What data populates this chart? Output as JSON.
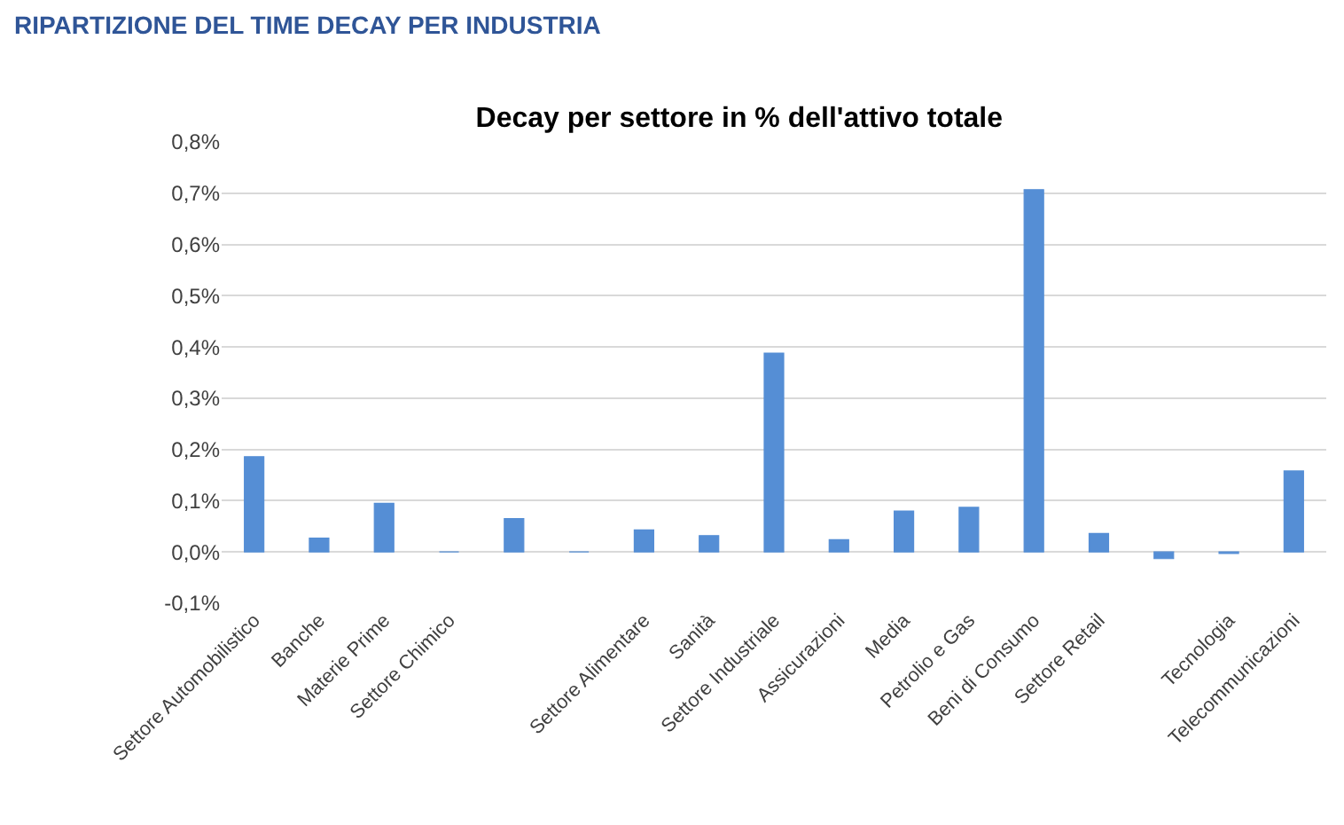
{
  "chart_data": {
    "type": "bar",
    "title": "Decay per settore in % dell'attivo totale",
    "annotations": [
      "RIPARTIZIONE DEL TIME DECAY PER INDUSTRIA"
    ],
    "categories": [
      "Settore Automobilistico",
      "Banche",
      "Materie Prime",
      "Settore Chimico",
      null,
      null,
      "Settore Alimentare",
      "Sanità",
      "Settore Industriale",
      "Assicurazioni",
      "Media",
      "Petrolio e Gas",
      "Beni di Consumo",
      "Settore Retail",
      null,
      "Tecnologia",
      "Telecommunicazioni"
    ],
    "values": [
      0.186,
      0.027,
      0.095,
      0,
      0.065,
      0,
      0.043,
      0.032,
      0.388,
      0.024,
      0.08,
      0.087,
      0.707,
      0.036,
      -0.013,
      -0.003,
      0.158
    ],
    "color": "#558ed5",
    "ylim": [
      -0.1,
      0.8
    ],
    "yticks": [
      {
        "value": -0.1,
        "label": "-0,1%"
      },
      {
        "value": 0,
        "label": "0,0%"
      },
      {
        "value": 0.1,
        "label": "0,1%"
      },
      {
        "value": 0.2,
        "label": "0,2%"
      },
      {
        "value": 0.3,
        "label": "0,3%"
      },
      {
        "value": 0.4,
        "label": "0,4%"
      },
      {
        "value": 0.5,
        "label": "0,5%"
      },
      {
        "value": 0.6,
        "label": "0,6%"
      },
      {
        "value": 0.7,
        "label": "0,7%"
      },
      {
        "value": 0.8,
        "label": "0,8%"
      }
    ],
    "grid": "y"
  }
}
